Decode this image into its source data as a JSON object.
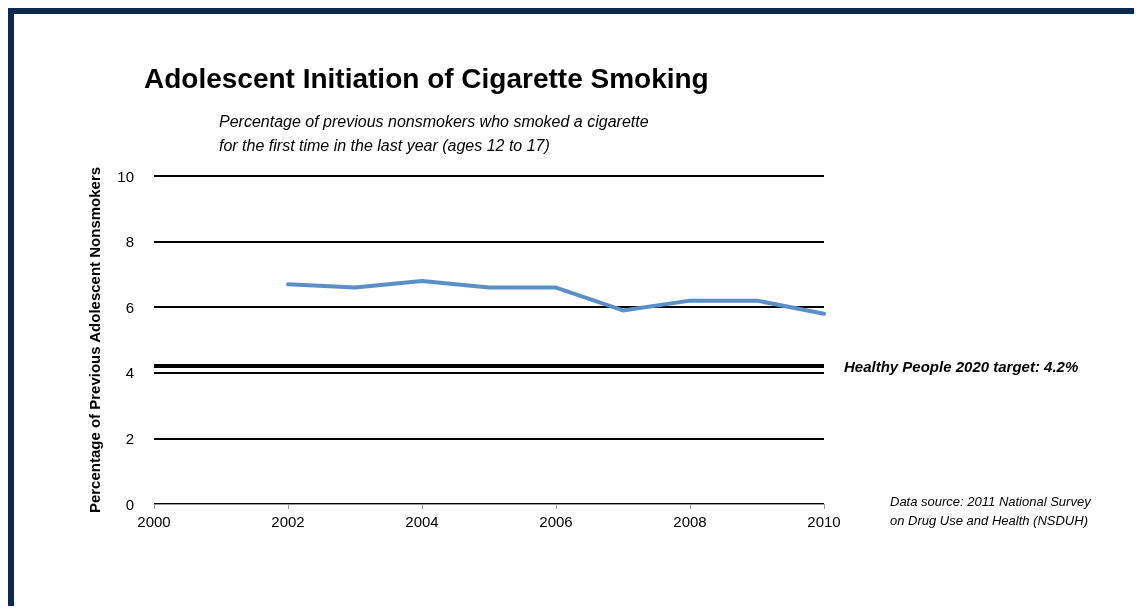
{
  "chart_data": {
    "type": "line",
    "title": "Adolescent Initiation of Cigarette Smoking",
    "subtitle": "Percentage of previous nonsmokers who smoked a cigarette for the first time in the last year (ages 12 to 17)",
    "ylabel": "Percentage of Previous Adolescent Nonsmokers",
    "x": [
      2002,
      2003,
      2004,
      2005,
      2006,
      2007,
      2008,
      2009,
      2010
    ],
    "series": [
      {
        "color": "#5b8fc9",
        "values": [
          6.7,
          6.6,
          6.8,
          6.6,
          6.6,
          5.9,
          6.2,
          6.2,
          5.8
        ]
      }
    ],
    "xlim": [
      2000,
      2010
    ],
    "xticks": [
      2000,
      2002,
      2004,
      2006,
      2008,
      2010
    ],
    "ylim": [
      0,
      10
    ],
    "yticks": [
      0,
      2,
      4,
      6,
      8,
      10
    ],
    "grid": "y",
    "marker": "none",
    "line_style": "solid",
    "ref_lines": [
      {
        "axis": "y",
        "value": 4.2,
        "label": "Healthy People 2020 target: 4.2%",
        "color": "#000000"
      }
    ],
    "annotations": [
      "Data source: 2011 National Survey on Drug Use and Health (NSDUH)"
    ]
  }
}
